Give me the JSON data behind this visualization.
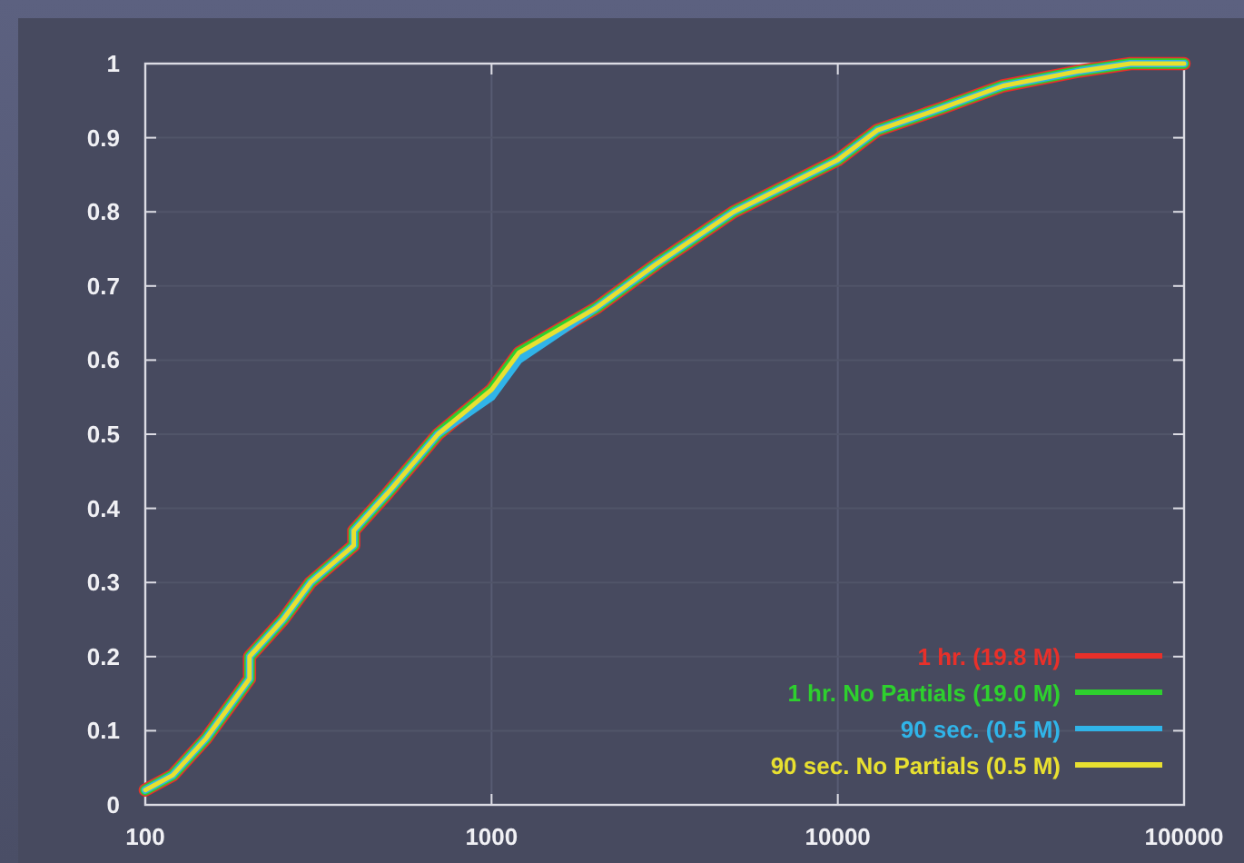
{
  "chart_data": {
    "type": "line",
    "log": "x",
    "xlim": [
      100,
      100000
    ],
    "xticks": [
      100,
      1000,
      10000,
      100000
    ],
    "ylim": [
      0,
      1
    ],
    "yticks": [
      0,
      0.1,
      0.2,
      0.3,
      0.4,
      0.5,
      0.6,
      0.7,
      0.8,
      0.9,
      1
    ],
    "grid": true,
    "legend": "bottom right",
    "line_style": "solid",
    "marker": "none",
    "x": [
      100,
      120,
      150,
      200,
      200,
      250,
      300,
      400,
      400,
      500,
      700,
      1000,
      1200,
      2000,
      3000,
      5000,
      10000,
      13000,
      20000,
      30000,
      50000,
      70000,
      100000
    ],
    "series": [
      {
        "name": "1 hr. (19.8 M)",
        "color": "#e8302a",
        "values": [
          0.02,
          0.04,
          0.09,
          0.17,
          0.2,
          0.25,
          0.3,
          0.35,
          0.37,
          0.42,
          0.5,
          0.56,
          0.61,
          0.67,
          0.73,
          0.8,
          0.87,
          0.91,
          0.94,
          0.97,
          0.99,
          1,
          1
        ]
      },
      {
        "name": "1 hr. No Partials (19.0 M)",
        "color": "#2ed02e",
        "values": [
          0.02,
          0.04,
          0.09,
          0.17,
          0.2,
          0.25,
          0.3,
          0.35,
          0.37,
          0.42,
          0.5,
          0.56,
          0.61,
          0.67,
          0.73,
          0.8,
          0.87,
          0.91,
          0.94,
          0.97,
          0.99,
          1,
          1
        ]
      },
      {
        "name": "90 sec. (0.5 M)",
        "color": "#30b4e8",
        "values": [
          0.02,
          0.04,
          0.09,
          0.17,
          0.2,
          0.25,
          0.3,
          0.35,
          0.37,
          0.42,
          0.5,
          0.55,
          0.6,
          0.67,
          0.73,
          0.8,
          0.87,
          0.91,
          0.94,
          0.97,
          0.99,
          1,
          1
        ]
      },
      {
        "name": "90 sec. No Partials (0.5 M)",
        "color": "#e8e030",
        "values": [
          0.02,
          0.04,
          0.09,
          0.17,
          0.2,
          0.25,
          0.3,
          0.35,
          0.37,
          0.42,
          0.5,
          0.56,
          0.61,
          0.67,
          0.73,
          0.8,
          0.87,
          0.91,
          0.94,
          0.97,
          0.99,
          1,
          1
        ]
      }
    ]
  }
}
